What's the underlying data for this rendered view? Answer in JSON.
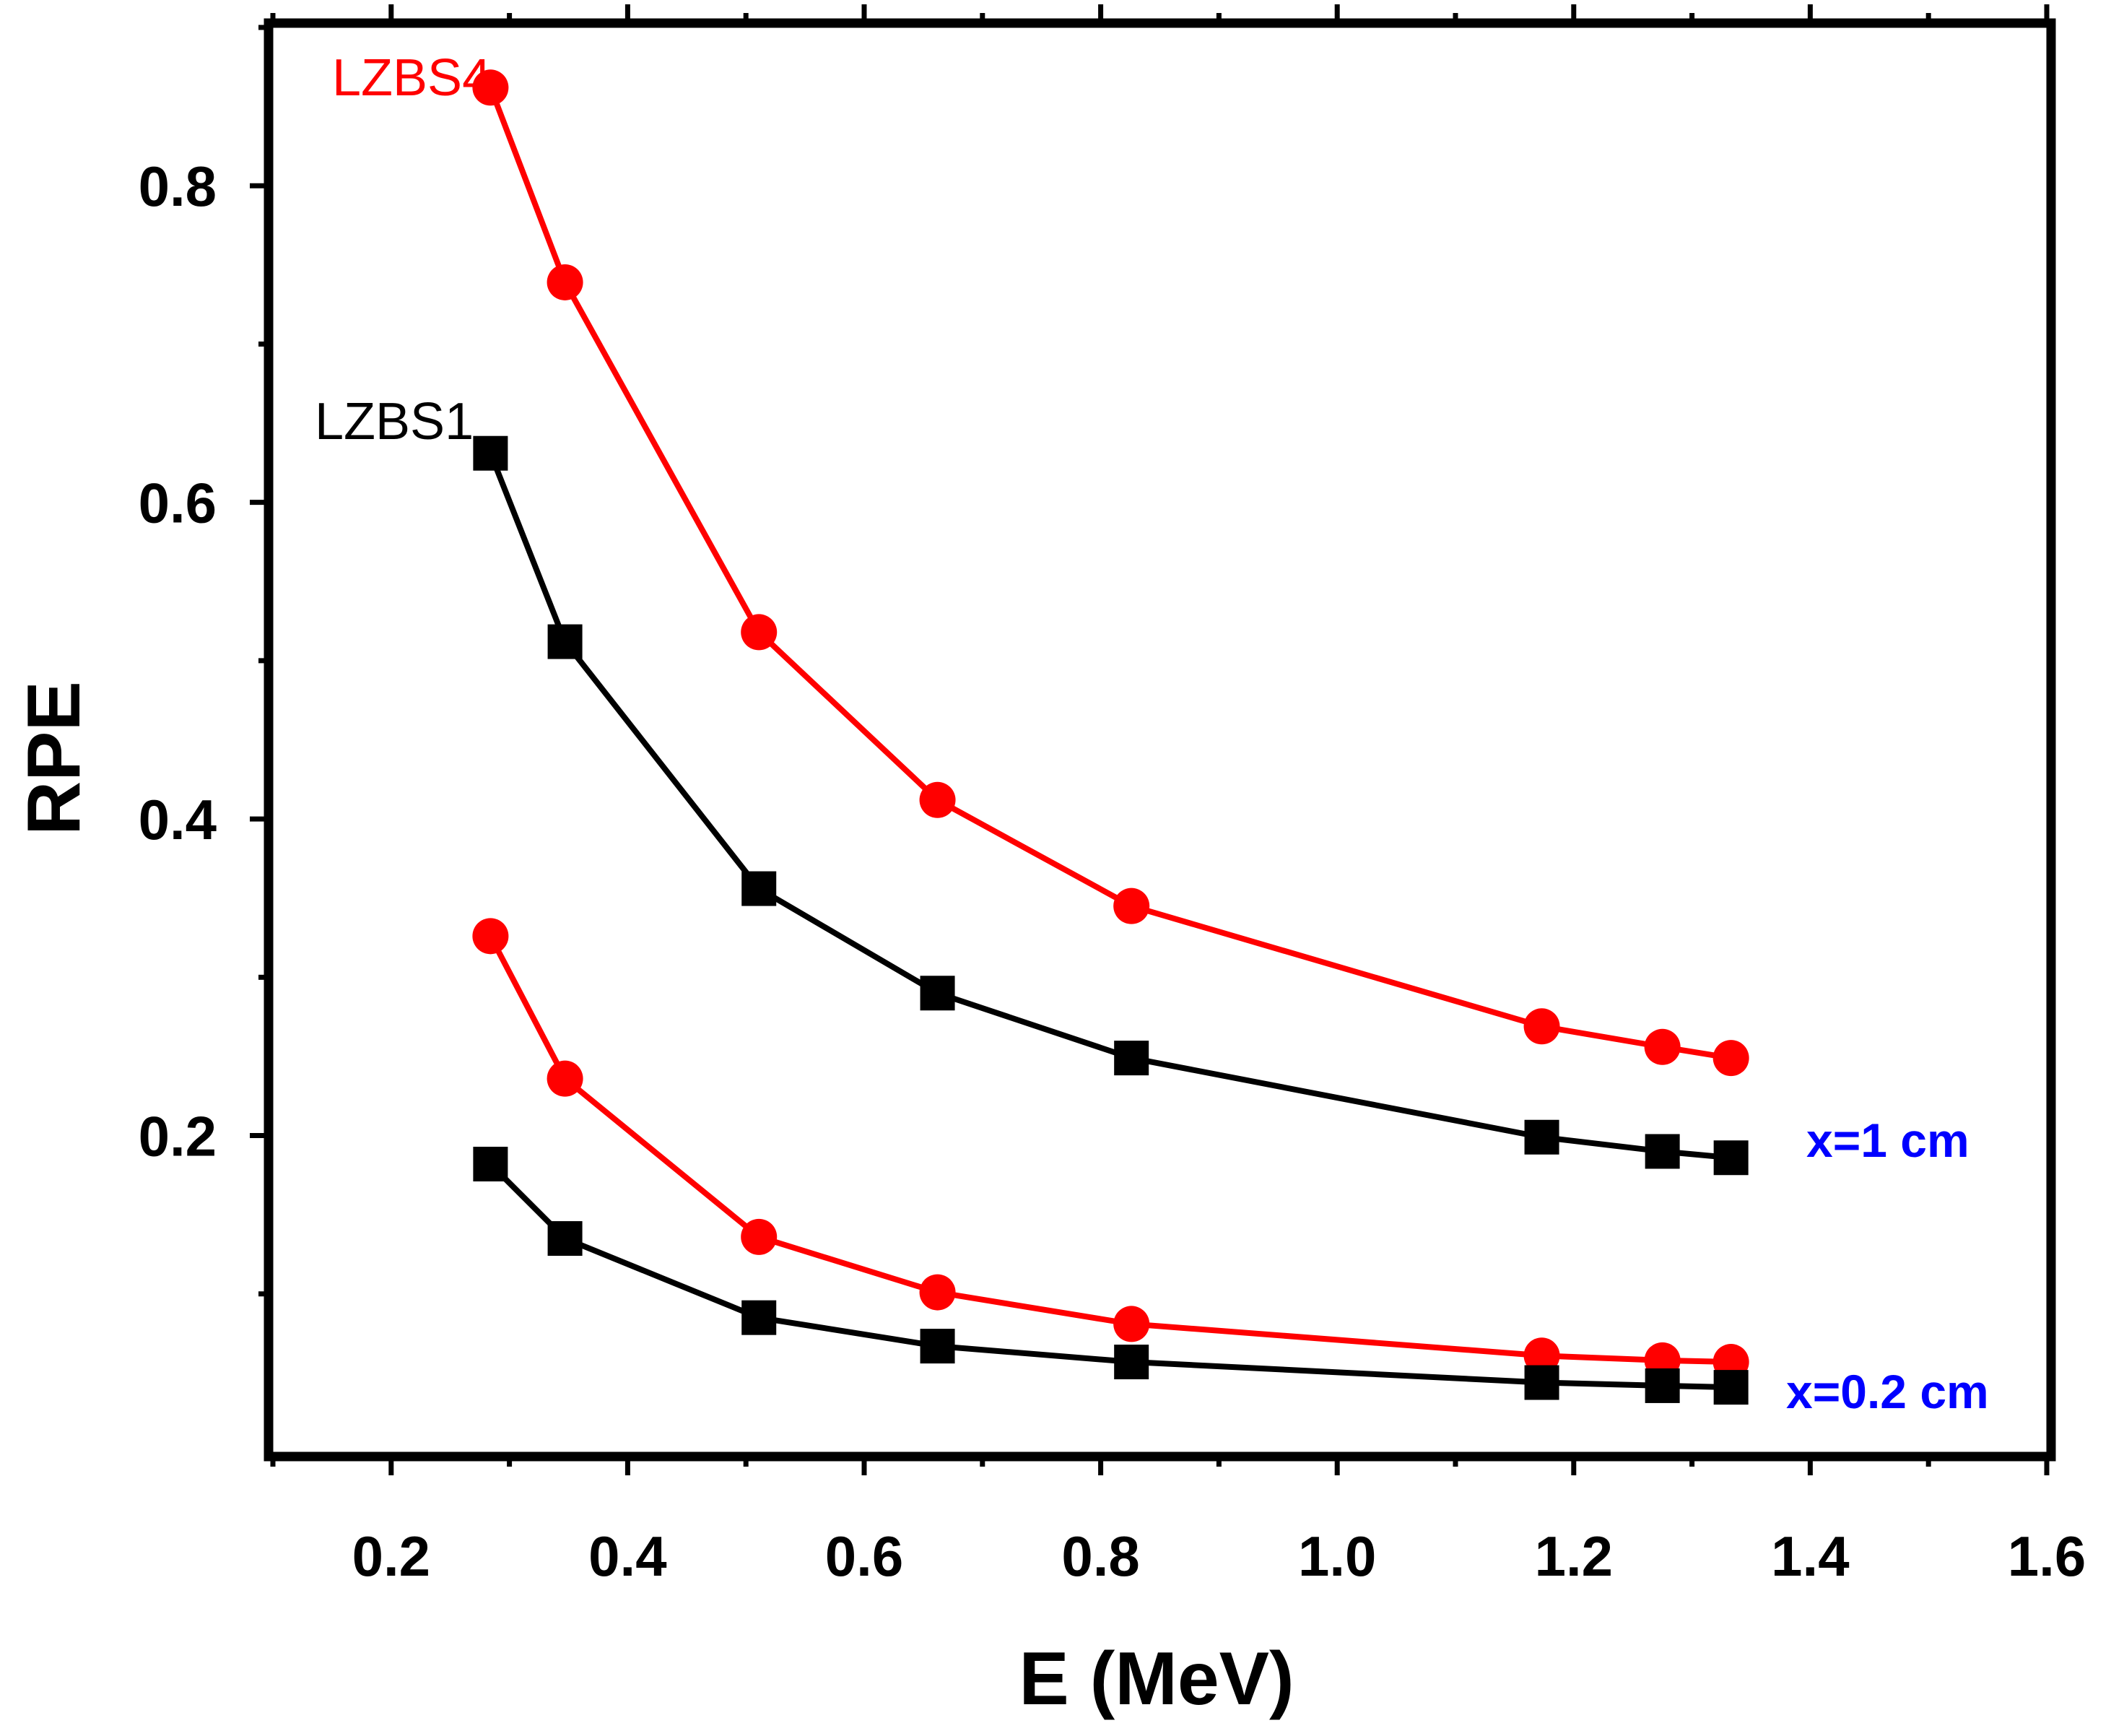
{
  "chart_data": {
    "type": "line",
    "title": "",
    "xlabel": "E (MeV)",
    "ylabel": "RPE",
    "xlim": [
      0.1,
      1.6
    ],
    "ylim": [
      0.0,
      0.9
    ],
    "xticks": [
      0.2,
      0.4,
      0.6,
      0.8,
      1.0,
      1.2,
      1.4,
      1.6
    ],
    "xtick_labels": [
      "0.2",
      "0.4",
      "0.6",
      "0.8",
      "1.0",
      "1.2",
      "1.4",
      "1.6"
    ],
    "yticks": [
      0.2,
      0.4,
      0.6,
      0.8
    ],
    "ytick_labels": [
      "0.2",
      "0.4",
      "0.6",
      "0.8"
    ],
    "grid": false,
    "series": [
      {
        "name": "LZBS4 x=1 cm",
        "material": "LZBS4",
        "thickness": "x=1 cm",
        "color": "#ff0000",
        "marker": "circle",
        "x": [
          0.284,
          0.347,
          0.511,
          0.662,
          0.826,
          1.173,
          1.275,
          1.333
        ],
        "y": [
          0.862,
          0.739,
          0.518,
          0.412,
          0.345,
          0.269,
          0.256,
          0.249
        ]
      },
      {
        "name": "LZBS1 x=1 cm",
        "material": "LZBS1",
        "thickness": "x=1 cm",
        "color": "#000000",
        "marker": "square",
        "x": [
          0.284,
          0.347,
          0.511,
          0.662,
          0.826,
          1.173,
          1.275,
          1.333
        ],
        "y": [
          0.631,
          0.512,
          0.356,
          0.29,
          0.249,
          0.199,
          0.19,
          0.186
        ]
      },
      {
        "name": "LZBS4 x=0.2 cm",
        "material": "LZBS4",
        "thickness": "x=0.2 cm",
        "color": "#ff0000",
        "marker": "circle",
        "x": [
          0.284,
          0.347,
          0.511,
          0.662,
          0.826,
          1.173,
          1.275,
          1.333
        ],
        "y": [
          0.326,
          0.236,
          0.136,
          0.101,
          0.081,
          0.061,
          0.058,
          0.057
        ]
      },
      {
        "name": "LZBS1 x=0.2 cm",
        "material": "LZBS1",
        "thickness": "x=0.2 cm",
        "color": "#000000",
        "marker": "square",
        "x": [
          0.284,
          0.347,
          0.511,
          0.662,
          0.826,
          1.173,
          1.275,
          1.333
        ],
        "y": [
          0.182,
          0.135,
          0.085,
          0.067,
          0.057,
          0.044,
          0.042,
          0.041
        ]
      }
    ],
    "annotations": [
      {
        "text": "LZBS4",
        "color": "#ff0000"
      },
      {
        "text": "LZBS1",
        "color": "#000000"
      },
      {
        "text": "x=1 cm",
        "color": "#0000ff"
      },
      {
        "text": "x=0.2 cm",
        "color": "#0000ff"
      }
    ]
  }
}
